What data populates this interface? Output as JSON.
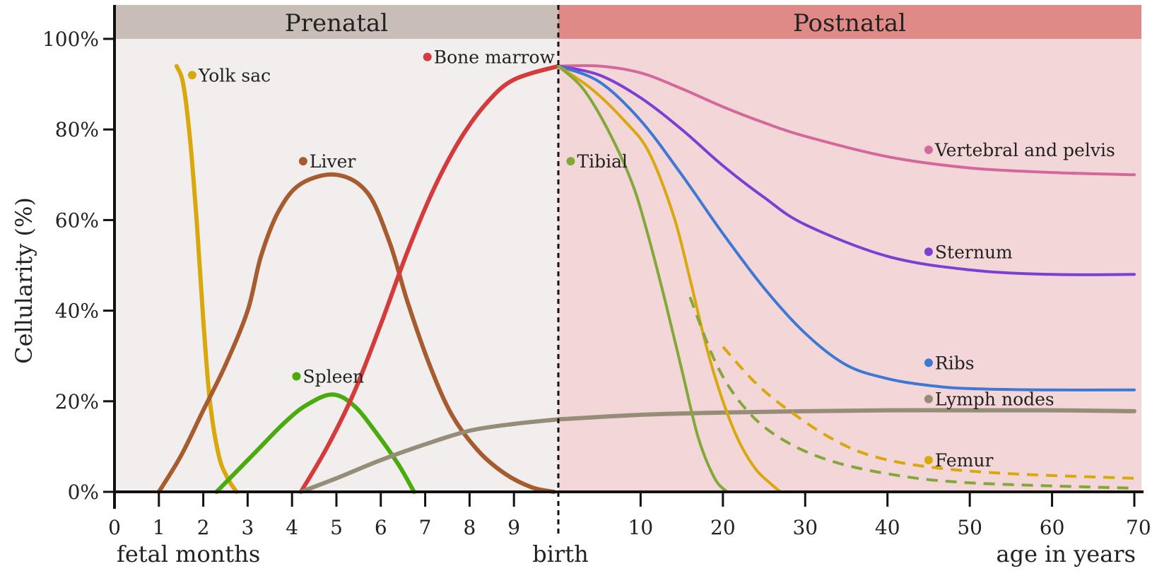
{
  "chart_data": {
    "type": "line",
    "ylabel": "Cellularity (%)",
    "ylim": [
      0,
      100
    ],
    "yticks": [
      "0%",
      "20%",
      "40%",
      "60%",
      "80%",
      "100%"
    ],
    "x_axis": {
      "prenatal_unit": "fetal months",
      "postnatal_unit": "age in years",
      "birth_label": "birth",
      "prenatal_ticks": [
        "0",
        "1",
        "2",
        "3",
        "4",
        "5",
        "6",
        "7",
        "8",
        "9"
      ],
      "postnatal_ticks": [
        "10",
        "20",
        "30",
        "40",
        "50",
        "60",
        "70"
      ],
      "prenatal_range_months": [
        0,
        10
      ],
      "postnatal_range_years": [
        0,
        70
      ]
    },
    "bands": [
      {
        "label": "Prenatal",
        "color": "#c9bdb8"
      },
      {
        "label": "Postnatal",
        "color": "#e08a87"
      }
    ],
    "series": [
      {
        "name": "Yolk sac",
        "color": "#d9a80c",
        "phase": "prenatal",
        "points": [
          [
            1.4,
            94
          ],
          [
            1.55,
            90
          ],
          [
            1.7,
            78
          ],
          [
            1.85,
            60
          ],
          [
            2.0,
            38
          ],
          [
            2.15,
            20
          ],
          [
            2.35,
            8
          ],
          [
            2.55,
            3
          ],
          [
            2.75,
            0
          ]
        ]
      },
      {
        "name": "Liver",
        "color": "#a65c2e",
        "phase": "prenatal",
        "points": [
          [
            1.0,
            0
          ],
          [
            1.5,
            8
          ],
          [
            2.0,
            18
          ],
          [
            2.5,
            28
          ],
          [
            3.0,
            40
          ],
          [
            3.3,
            52
          ],
          [
            3.7,
            62
          ],
          [
            4.2,
            68
          ],
          [
            5.0,
            70
          ],
          [
            5.7,
            66
          ],
          [
            6.2,
            55
          ],
          [
            6.6,
            42
          ],
          [
            7.1,
            28
          ],
          [
            7.6,
            17
          ],
          [
            8.2,
            9
          ],
          [
            8.8,
            4
          ],
          [
            9.4,
            1
          ],
          [
            9.9,
            0
          ]
        ]
      },
      {
        "name": "Spleen",
        "color": "#4aab0c",
        "phase": "prenatal",
        "points": [
          [
            2.3,
            0
          ],
          [
            2.8,
            5
          ],
          [
            3.3,
            10
          ],
          [
            3.8,
            15
          ],
          [
            4.3,
            19
          ],
          [
            4.9,
            21.5
          ],
          [
            5.4,
            19
          ],
          [
            5.9,
            13
          ],
          [
            6.4,
            6
          ],
          [
            6.75,
            0
          ]
        ]
      },
      {
        "name": "Bone marrow",
        "color": "#d43c3c",
        "phase": "prenatal",
        "points": [
          [
            4.2,
            0
          ],
          [
            4.8,
            10
          ],
          [
            5.4,
            22
          ],
          [
            6.0,
            37
          ],
          [
            6.6,
            53
          ],
          [
            7.2,
            67
          ],
          [
            7.8,
            78
          ],
          [
            8.4,
            86
          ],
          [
            9.0,
            91
          ],
          [
            10.0,
            94
          ]
        ]
      },
      {
        "name": "Lymph nodes",
        "color": "#958d77",
        "phase": "prenatal",
        "points": [
          [
            4.2,
            0
          ],
          [
            5.0,
            3
          ],
          [
            6.0,
            7
          ],
          [
            7.0,
            10.5
          ],
          [
            8.0,
            13.5
          ],
          [
            9.0,
            15
          ],
          [
            10.0,
            16
          ]
        ]
      },
      {
        "name": "Lymph nodes",
        "color": "#958d77",
        "phase": "postnatal",
        "points": [
          [
            0,
            16
          ],
          [
            10,
            17
          ],
          [
            20,
            17.5
          ],
          [
            30,
            17.8
          ],
          [
            40,
            18
          ],
          [
            50,
            18
          ],
          [
            60,
            18
          ],
          [
            70,
            17.8
          ]
        ]
      },
      {
        "name": "Vertebral and pelvis",
        "color": "#d4679c",
        "phase": "postnatal",
        "points": [
          [
            0,
            94
          ],
          [
            5,
            94
          ],
          [
            10,
            92.5
          ],
          [
            15,
            89
          ],
          [
            20,
            85
          ],
          [
            25,
            81.5
          ],
          [
            30,
            78.5
          ],
          [
            40,
            74
          ],
          [
            50,
            71.5
          ],
          [
            60,
            70.5
          ],
          [
            70,
            70
          ]
        ]
      },
      {
        "name": "Sternum",
        "color": "#7b3fd4",
        "phase": "postnatal",
        "points": [
          [
            0,
            94
          ],
          [
            5,
            92
          ],
          [
            10,
            87
          ],
          [
            15,
            80
          ],
          [
            20,
            72
          ],
          [
            25,
            65
          ],
          [
            30,
            59
          ],
          [
            40,
            52
          ],
          [
            50,
            49
          ],
          [
            60,
            48
          ],
          [
            70,
            48
          ]
        ]
      },
      {
        "name": "Ribs",
        "color": "#3c78d4",
        "phase": "postnatal",
        "points": [
          [
            0,
            94
          ],
          [
            5,
            90.5
          ],
          [
            10,
            82
          ],
          [
            15,
            70
          ],
          [
            20,
            57
          ],
          [
            25,
            45
          ],
          [
            30,
            35
          ],
          [
            35,
            28
          ],
          [
            40,
            25
          ],
          [
            45,
            23.5
          ],
          [
            50,
            22.8
          ],
          [
            60,
            22.5
          ],
          [
            70,
            22.5
          ]
        ]
      },
      {
        "name": "Femur",
        "color": "#d9a80c",
        "phase": "postnatal",
        "points": [
          [
            0,
            94
          ],
          [
            4,
            89
          ],
          [
            8,
            82
          ],
          [
            11,
            75
          ],
          [
            14,
            61
          ],
          [
            16,
            47
          ],
          [
            18,
            32
          ],
          [
            20,
            20
          ],
          [
            22,
            11
          ],
          [
            24,
            5
          ],
          [
            26,
            1.5
          ],
          [
            27,
            0
          ]
        ]
      },
      {
        "name": "Femur",
        "color": "#d9a80c",
        "phase": "postnatal",
        "dashed": true,
        "points": [
          [
            20,
            32
          ],
          [
            24,
            24
          ],
          [
            28,
            18
          ],
          [
            33,
            12
          ],
          [
            38,
            8
          ],
          [
            45,
            5.5
          ],
          [
            55,
            4
          ],
          [
            70,
            3
          ]
        ]
      },
      {
        "name": "Tibial",
        "color": "#83a83a",
        "phase": "postnatal",
        "points": [
          [
            0,
            94
          ],
          [
            3,
            89
          ],
          [
            6,
            80
          ],
          [
            9,
            68
          ],
          [
            11,
            56
          ],
          [
            13,
            42
          ],
          [
            15,
            27
          ],
          [
            17,
            12
          ],
          [
            19,
            3
          ],
          [
            20.5,
            0
          ]
        ]
      },
      {
        "name": "Tibial",
        "color": "#83a83a",
        "phase": "postnatal",
        "dashed": true,
        "points": [
          [
            16,
            43
          ],
          [
            19,
            29
          ],
          [
            22,
            20
          ],
          [
            26,
            13
          ],
          [
            32,
            7.5
          ],
          [
            40,
            4
          ],
          [
            50,
            2
          ],
          [
            70,
            0.8
          ]
        ]
      }
    ],
    "labels": [
      {
        "text": "Yolk sac",
        "color": "#d9a80c",
        "phase": "prenatal",
        "x": 1.75,
        "y": 92
      },
      {
        "text": "Liver",
        "color": "#a65c2e",
        "phase": "prenatal",
        "x": 4.25,
        "y": 73
      },
      {
        "text": "Spleen",
        "color": "#4aab0c",
        "phase": "prenatal",
        "x": 4.1,
        "y": 25.5
      },
      {
        "text": "Bone marrow",
        "color": "#d43c3c",
        "phase": "prenatal",
        "x": 7.05,
        "y": 96
      },
      {
        "text": "Tibial",
        "color": "#83a83a",
        "phase": "postnatal",
        "x": 1.5,
        "y": 73
      },
      {
        "text": "Vertebral and pelvis",
        "color": "#d4679c",
        "phase": "postnatal",
        "x": 45,
        "y": 75.5
      },
      {
        "text": "Sternum",
        "color": "#7b3fd4",
        "phase": "postnatal",
        "x": 45,
        "y": 53
      },
      {
        "text": "Ribs",
        "color": "#3c78d4",
        "phase": "postnatal",
        "x": 45,
        "y": 28.5
      },
      {
        "text": "Lymph nodes",
        "color": "#958d77",
        "phase": "postnatal",
        "x": 45,
        "y": 20.5
      },
      {
        "text": "Femur",
        "color": "#d9a80c",
        "phase": "postnatal",
        "x": 45,
        "y": 7
      }
    ],
    "grid": false
  }
}
